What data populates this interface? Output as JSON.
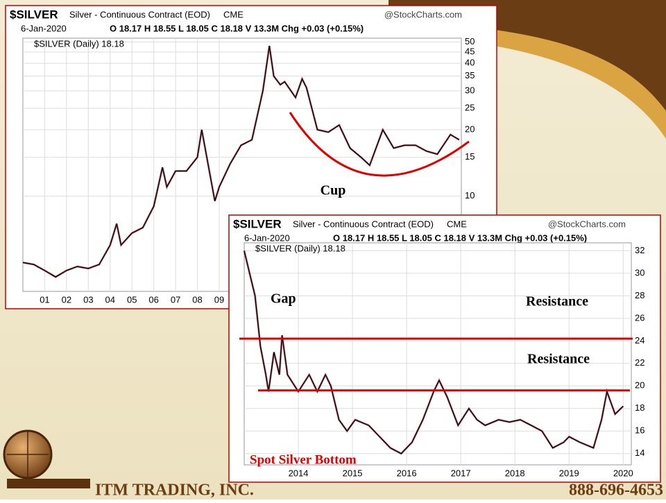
{
  "chart_data": [
    {
      "type": "line",
      "header": {
        "symbol": "$SILVER",
        "name": "Silver - Continuous Contract (EOD)",
        "exchange": "CME",
        "source": "@StockCharts.com",
        "date": "6-Jan-2020",
        "quote": "O 18.17  H 18.55  L 18.05  C 18.18  V 13.3M  Chg +0.03 (+0.15%)"
      },
      "legend_label": "$SILVER (Daily) 18.18",
      "log_scale": true,
      "grid": true,
      "x": [
        2000,
        2000.5,
        2001,
        2001.5,
        2002,
        2002.5,
        2003,
        2003.5,
        2004,
        2004.3,
        2004.5,
        2005,
        2005.5,
        2006,
        2006.4,
        2006.6,
        2007,
        2007.5,
        2008,
        2008.2,
        2008.8,
        2009,
        2009.5,
        2010,
        2010.5,
        2011,
        2011.3,
        2011.5,
        2011.8,
        2012,
        2012.5,
        2012.8,
        2013,
        2013.5,
        2014,
        2014.5,
        2015,
        2015.5,
        2015.9,
        2016.5,
        2017,
        2017.5,
        2018,
        2018.5,
        2019,
        2019.6,
        2020
      ],
      "series": [
        {
          "name": "$SILVER",
          "color": "#000000",
          "values": [
            5.0,
            4.9,
            4.6,
            4.3,
            4.6,
            4.8,
            4.7,
            4.9,
            6.0,
            7.5,
            6.0,
            6.8,
            7.2,
            9.0,
            13.5,
            11,
            13,
            13,
            15,
            20,
            9.5,
            11,
            14,
            17,
            18,
            30,
            48,
            35,
            32,
            33,
            28,
            34,
            31,
            20,
            19.5,
            21,
            16.5,
            15,
            13.8,
            20,
            16.5,
            17,
            17,
            16,
            15.5,
            19,
            18
          ]
        }
      ],
      "xlim": [
        2000,
        2020.1
      ],
      "xticks": [
        {
          "value": 2001,
          "label": "01"
        },
        {
          "value": 2002,
          "label": "02"
        },
        {
          "value": 2003,
          "label": "03"
        },
        {
          "value": 2004,
          "label": "04"
        },
        {
          "value": 2005,
          "label": "05"
        },
        {
          "value": 2006,
          "label": "06"
        },
        {
          "value": 2007,
          "label": "07"
        },
        {
          "value": 2008,
          "label": "08"
        },
        {
          "value": 2009,
          "label": "09"
        }
      ],
      "ylim": [
        3.7,
        52
      ],
      "yticks": [
        10,
        15,
        20,
        25,
        30,
        35,
        40,
        45,
        50
      ],
      "annotations": [
        "Cup"
      ]
    },
    {
      "type": "line",
      "header": {
        "symbol": "$SILVER",
        "name": "Silver - Continuous Contract (EOD)",
        "exchange": "CME",
        "source": "@StockCharts.com",
        "date": "6-Jan-2020",
        "quote": "O 18.17  H 18.55  L 18.05  C 18.18  V 13.3M  Chg +0.03 (+0.15%)"
      },
      "legend_label": "$SILVER (Daily) 18.18",
      "log_scale": false,
      "grid": true,
      "x": [
        2013.0,
        2013.1,
        2013.2,
        2013.3,
        2013.4,
        2013.45,
        2013.55,
        2013.65,
        2013.7,
        2013.8,
        2014.0,
        2014.2,
        2014.35,
        2014.5,
        2014.6,
        2014.75,
        2014.9,
        2015.05,
        2015.3,
        2015.5,
        2015.7,
        2015.9,
        2016.1,
        2016.3,
        2016.5,
        2016.6,
        2016.75,
        2016.95,
        2017.15,
        2017.3,
        2017.45,
        2017.7,
        2017.9,
        2018.1,
        2018.3,
        2018.5,
        2018.7,
        2018.9,
        2019.0,
        2019.2,
        2019.45,
        2019.6,
        2019.7,
        2019.85,
        2020.0
      ],
      "series": [
        {
          "name": "$SILVER",
          "color": "#000000",
          "values": [
            32,
            30,
            28,
            23.5,
            21,
            19.5,
            23,
            21,
            24.5,
            21,
            19.5,
            21,
            19.5,
            21,
            20,
            17,
            16,
            17,
            16.5,
            15.5,
            14.5,
            14,
            15,
            17,
            19.5,
            20.5,
            19,
            16.5,
            18,
            17,
            16.5,
            17,
            16.8,
            17,
            16.5,
            16,
            14.5,
            15,
            15.5,
            15,
            14.5,
            17,
            19.5,
            17.5,
            18.2
          ]
        }
      ],
      "xlim": [
        2013,
        2020.15
      ],
      "xticks": [
        2014,
        2015,
        2016,
        2017,
        2018,
        2019,
        2020
      ],
      "ylim": [
        13,
        32.7
      ],
      "yticks": [
        14,
        16,
        18,
        20,
        22,
        24,
        26,
        28,
        30,
        32
      ],
      "hlines": [
        24.2,
        19.6
      ],
      "hline_color": "#e00000",
      "annotations": [
        "Gap",
        "Resistance",
        "Resistance",
        "Spot Silver Bottom"
      ]
    }
  ],
  "footer": {
    "company": "ITM TRADING, INC.",
    "phone": "888-696-4653"
  }
}
